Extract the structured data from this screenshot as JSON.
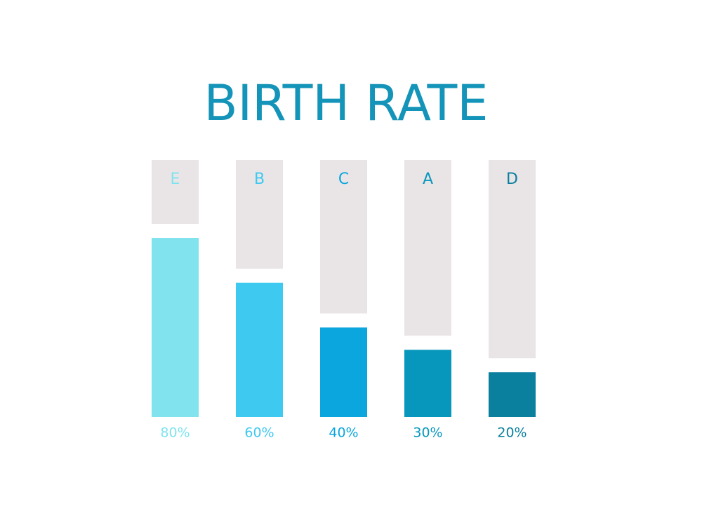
{
  "chart_data": {
    "type": "bar",
    "title": "BIRTH RATE",
    "categories": [
      "E",
      "B",
      "C",
      "A",
      "D"
    ],
    "values": [
      80,
      60,
      40,
      30,
      20
    ],
    "value_labels": [
      "80%",
      "60%",
      "40%",
      "30%",
      "20%"
    ],
    "colors": [
      "#80e3ed",
      "#3ec9f0",
      "#0aa6dd",
      "#0897bc",
      "#0a7f9e"
    ]
  }
}
